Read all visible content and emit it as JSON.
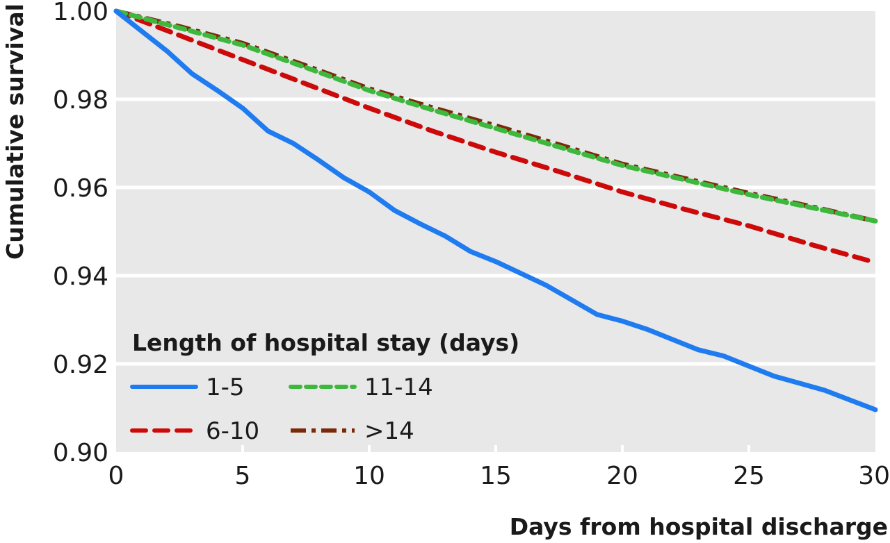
{
  "chart_data": {
    "type": "line",
    "title": "",
    "xlabel": "Days from hospital discharge",
    "ylabel": "Cumulative survival",
    "xlim": [
      0,
      30
    ],
    "ylim": [
      0.9,
      1.0
    ],
    "x_ticks": [
      0,
      5,
      10,
      15,
      20,
      25,
      30
    ],
    "x_tick_labels": [
      "0",
      "5",
      "10",
      "15",
      "20",
      "25",
      "30"
    ],
    "y_ticks": [
      0.9,
      0.92,
      0.94,
      0.96,
      0.98,
      1.0
    ],
    "y_tick_labels": [
      "0.90",
      "0.92",
      "0.94",
      "0.96",
      "0.98",
      "1.00"
    ],
    "grid": "horizontal",
    "background": "#e8e8e8",
    "legend": {
      "title": "Length of hospital stay (days)",
      "placement": "bottom-left"
    },
    "series": [
      {
        "name": "1-5",
        "color": "#1f7bf0",
        "style": "solid",
        "x": [
          0,
          1,
          2,
          3,
          4,
          5,
          6,
          7,
          8,
          9,
          10,
          11,
          12,
          13,
          14,
          15,
          16,
          17,
          18,
          19,
          20,
          21,
          22,
          23,
          24,
          25,
          26,
          27,
          28,
          29,
          30
        ],
        "values": [
          1.0,
          0.9955,
          0.991,
          0.9858,
          0.982,
          0.978,
          0.9728,
          0.97,
          0.9662,
          0.9622,
          0.959,
          0.9548,
          0.9518,
          0.949,
          0.9455,
          0.9432,
          0.9405,
          0.9378,
          0.9345,
          0.9312,
          0.9297,
          0.9278,
          0.9255,
          0.9232,
          0.9218,
          0.9195,
          0.9172,
          0.9156,
          0.914,
          0.9118,
          0.9096
        ]
      },
      {
        "name": "6-10",
        "color": "#cc0a0a",
        "style": "dashed",
        "x": [
          0,
          2.5,
          5,
          7.5,
          10,
          12.5,
          15,
          17.5,
          20,
          22.5,
          25,
          27.5,
          30
        ],
        "values": [
          1.0,
          0.9945,
          0.989,
          0.9835,
          0.978,
          0.9728,
          0.968,
          0.9636,
          0.959,
          0.955,
          0.9513,
          0.947,
          0.943
        ]
      },
      {
        "name": "11-14",
        "color": "#3db83d",
        "style": "dotted-dash",
        "x": [
          0,
          2.5,
          5,
          7.5,
          10,
          12.5,
          15,
          17.5,
          20,
          22.5,
          25,
          27.5,
          30
        ],
        "values": [
          1.0,
          0.9962,
          0.9923,
          0.9872,
          0.982,
          0.9776,
          0.9734,
          0.9692,
          0.965,
          0.9617,
          0.9584,
          0.9554,
          0.9524
        ]
      },
      {
        "name": ">14",
        "color": "#7a2a08",
        "style": "dash-dot",
        "x": [
          0,
          2.5,
          5,
          7.5,
          10,
          12.5,
          15,
          17.5,
          20,
          22.5,
          25,
          27.5,
          30
        ],
        "values": [
          1.0,
          0.9965,
          0.9927,
          0.9876,
          0.9824,
          0.9781,
          0.974,
          0.9697,
          0.9653,
          0.962,
          0.9587,
          0.9556,
          0.9524
        ]
      }
    ]
  }
}
